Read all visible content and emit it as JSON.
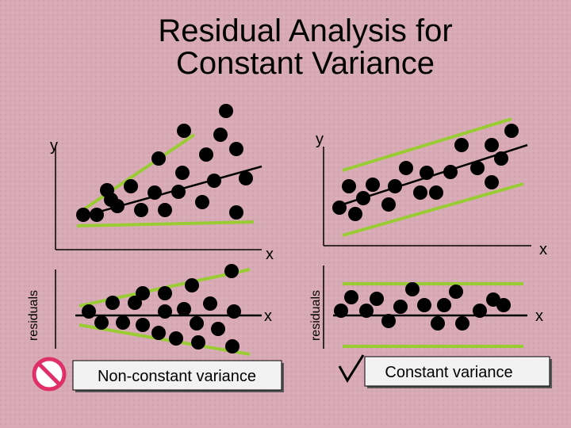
{
  "title": [
    "Residual Analysis for",
    "Constant Variance"
  ],
  "panels": [
    {
      "y_label": "y",
      "x_label": "x",
      "residual_label": "residuals",
      "residual_x_label": "x",
      "caption": "Non-constant variance"
    },
    {
      "y_label": "y",
      "x_label": "x",
      "residual_label": "residuals",
      "residual_x_label": "x",
      "caption": "Constant variance"
    }
  ]
}
